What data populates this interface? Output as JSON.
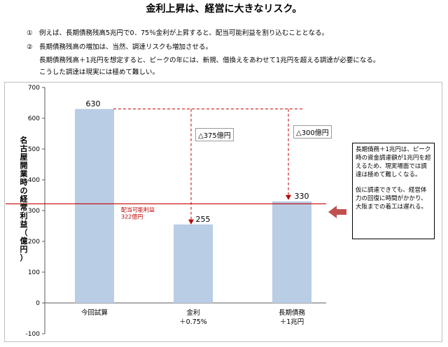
{
  "title": "金利上昇は、経営に大きなリスク。",
  "notes": {
    "n1": "①　例えば、長期債務残高5兆円で0．75％金利が上昇すると、配当可能利益を割り込むこととなる。",
    "n2": "②　長期債務残高の増加は、当然、調達リスクも増加させる。",
    "n3": "長期債務残高＋1兆円を想定すると、ピークの年には、新規、借換えをあわせて1兆円を超える調達が必要になる。",
    "n4": "こうした調達は現実には極めて難しい。"
  },
  "side_box": {
    "p1": "長期債務＋1兆円は、ピーク時の資金調達額が1兆円を超えるため、現実場面では調達は極めて難しくなる。",
    "p2": "仮に調達できても、経営体力の回復に時間がかかり、大阪までの着工は遅れる。"
  },
  "colors": {
    "bar": "#b9cde5",
    "accent": "#c00000",
    "arrow": "#c0504d"
  },
  "chart_data": {
    "type": "bar",
    "categories": [
      "今回試算",
      "金利\n＋0.75%",
      "長期債務\n＋1兆円"
    ],
    "category_lines": [
      [
        "今回試算"
      ],
      [
        "金利",
        "＋0.75%"
      ],
      [
        "長期債務",
        "＋1兆円"
      ]
    ],
    "values": [
      630,
      255,
      330
    ],
    "data_labels": [
      "630",
      "255",
      "330"
    ],
    "ylabel": "名古屋開業時の経常利益（億円）",
    "ylim": [
      -100,
      700
    ],
    "yticks": [
      "-100",
      "0",
      "100",
      "200",
      "300",
      "400",
      "500",
      "600",
      "700"
    ],
    "reference_line": {
      "value": 322,
      "label1": "配当可能利益",
      "label2": "322億円"
    },
    "annotations": [
      "△375億円",
      "△300億円"
    ]
  }
}
